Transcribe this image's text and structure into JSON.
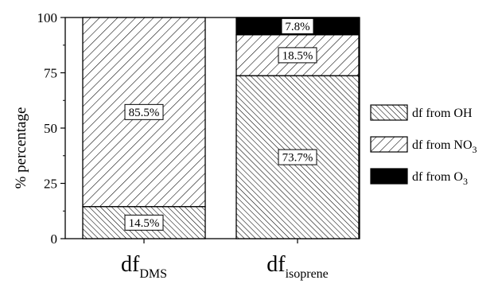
{
  "chart_data": {
    "type": "bar",
    "stacked": true,
    "ylabel": "% percentage",
    "ylim": [
      0,
      100
    ],
    "yticks": [
      "0",
      "25",
      "50",
      "75",
      "100"
    ],
    "grid": false,
    "legend_position": "right",
    "categories": [
      {
        "main": "df",
        "sub": "DMS"
      },
      {
        "main": "df",
        "sub": "isoprene"
      }
    ],
    "series": [
      {
        "name": "df from OH",
        "name_main": "df from OH",
        "name_sub": "",
        "pattern": "dense-backslash",
        "values": [
          14.5,
          73.7
        ],
        "labels": [
          "14.5%",
          "73.7%"
        ]
      },
      {
        "name": "df from NO3",
        "name_main": "df from NO",
        "name_sub": "3",
        "pattern": "slash",
        "values": [
          85.5,
          18.5
        ],
        "labels": [
          "85.5%",
          "18.5%"
        ]
      },
      {
        "name": "df from O3",
        "name_main": "df from O",
        "name_sub": "3",
        "pattern": "solid",
        "color": "#000000",
        "values": [
          0,
          7.8
        ],
        "labels": [
          "",
          "7.8%"
        ]
      }
    ]
  }
}
